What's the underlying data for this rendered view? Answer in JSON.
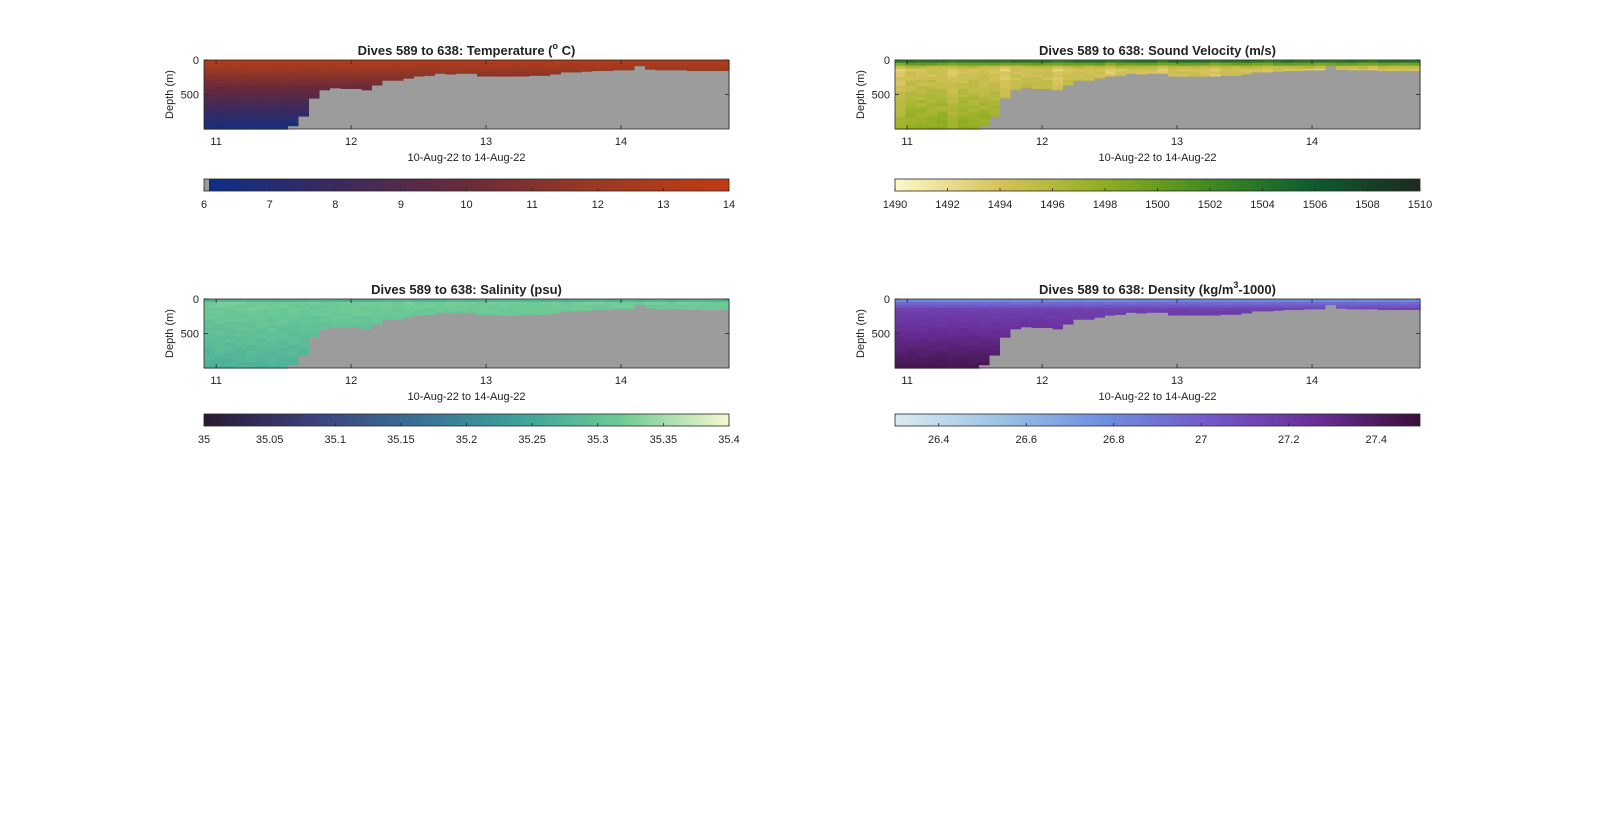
{
  "figure": {
    "background": "#ffffff"
  },
  "chart_data": [
    {
      "type": "heatmap",
      "title": "Dives 589 to 638: Temperature (° C)",
      "title_parts": [
        "Dives 589 to 638: Temperature (",
        "o",
        " C)"
      ],
      "xlabel": "10-Aug-22 to 14-Aug-22",
      "ylabel": "Depth (m)",
      "x_ticks": [
        "11",
        "12",
        "13",
        "14"
      ],
      "y_ticks": [
        "0",
        "500"
      ],
      "xlim": [
        10.91,
        14.8
      ],
      "ylim": [
        1000,
        0
      ],
      "grey_color": "#9c9c9c",
      "bottom_depth_m": [
        1000,
        1000,
        1000,
        1000,
        1000,
        1000,
        1000,
        1000,
        960,
        820,
        560,
        440,
        410,
        420,
        420,
        440,
        370,
        300,
        300,
        270,
        240,
        230,
        200,
        210,
        200,
        200,
        240,
        240,
        240,
        240,
        240,
        230,
        230,
        210,
        180,
        180,
        170,
        160,
        160,
        150,
        150,
        90,
        140,
        150,
        150,
        150,
        160,
        160,
        160,
        160
      ],
      "cmap": [
        "#0b2f8a",
        "#3a2a5e",
        "#6a2a3a",
        "#9b3a22",
        "#c23a12"
      ],
      "range": [
        6,
        14
      ],
      "colorbar_ticks": [
        "6",
        "7",
        "8",
        "9",
        "10",
        "11",
        "12",
        "13",
        "14"
      ],
      "notes": "surface ~13.5 C, decreasing to ~6.5 C at 1000 m"
    },
    {
      "type": "heatmap",
      "title": "Dives 589 to 638: Sound Velocity (m/s)",
      "title_parts": [
        "Dives 589 to 638: Sound Velocity (m/s)",
        "",
        ""
      ],
      "xlabel": "10-Aug-22 to 14-Aug-22",
      "ylabel": "Depth (m)",
      "x_ticks": [
        "11",
        "12",
        "13",
        "14"
      ],
      "y_ticks": [
        "0",
        "500"
      ],
      "xlim": [
        10.91,
        14.8
      ],
      "ylim": [
        1000,
        0
      ],
      "grey_color": "#9c9c9c",
      "bottom_depth_m": [
        1000,
        1000,
        1000,
        1000,
        1000,
        1000,
        1000,
        1000,
        960,
        820,
        560,
        440,
        410,
        420,
        420,
        440,
        370,
        300,
        300,
        270,
        240,
        230,
        200,
        210,
        200,
        200,
        240,
        240,
        240,
        240,
        240,
        230,
        230,
        210,
        180,
        180,
        170,
        160,
        160,
        150,
        150,
        90,
        140,
        150,
        150,
        150,
        160,
        160,
        160,
        160
      ],
      "cmap": [
        "#fcf8c8",
        "#d6c25a",
        "#8fae20",
        "#3f8a20",
        "#0d5b30",
        "#1e2a1e"
      ],
      "range": [
        1490,
        1510
      ],
      "colorbar_ticks": [
        "1490",
        "1492",
        "1494",
        "1496",
        "1498",
        "1500",
        "1502",
        "1504",
        "1506",
        "1508",
        "1510"
      ],
      "notes": "surface ~1503 m/s (green), ~1493-1494 at 100 m, ~1498 at depth"
    },
    {
      "type": "heatmap",
      "title": "Dives 589 to 638: Salinity (psu)",
      "title_parts": [
        "Dives 589 to 638: Salinity (psu)",
        "",
        ""
      ],
      "xlabel": "10-Aug-22 to 14-Aug-22",
      "ylabel": "Depth (m)",
      "x_ticks": [
        "11",
        "12",
        "13",
        "14"
      ],
      "y_ticks": [
        "0",
        "500"
      ],
      "xlim": [
        10.91,
        14.8
      ],
      "ylim": [
        1000,
        0
      ],
      "grey_color": "#9c9c9c",
      "bottom_depth_m": [
        1000,
        1000,
        1000,
        1000,
        1000,
        1000,
        1000,
        1000,
        960,
        820,
        560,
        440,
        410,
        420,
        420,
        440,
        370,
        300,
        300,
        270,
        240,
        230,
        200,
        210,
        200,
        200,
        240,
        240,
        240,
        240,
        240,
        230,
        230,
        210,
        180,
        180,
        170,
        160,
        160,
        150,
        150,
        90,
        140,
        150,
        150,
        150,
        160,
        160,
        160,
        160
      ],
      "cmap": [
        "#2a1a32",
        "#3c3f7a",
        "#3a6f96",
        "#3da29b",
        "#70cc95",
        "#f7f7d0"
      ],
      "range": [
        35,
        35.4
      ],
      "colorbar_ticks": [
        "35",
        "35.05",
        "35.1",
        "35.15",
        "35.2",
        "35.25",
        "35.3",
        "35.35",
        "35.4"
      ],
      "notes": "surface ~35.2, ~35.32 below, decreasing to ~35.26 at depth"
    },
    {
      "type": "heatmap",
      "title": "Dives 589 to 638: Density (kg/m³-1000)",
      "title_parts": [
        "Dives 589 to 638: Density (kg/m",
        "3",
        "-1000)"
      ],
      "xlabel": "10-Aug-22 to 14-Aug-22",
      "ylabel": "Depth (m)",
      "x_ticks": [
        "11",
        "12",
        "13",
        "14"
      ],
      "y_ticks": [
        "0",
        "500"
      ],
      "xlim": [
        10.91,
        14.8
      ],
      "ylim": [
        1000,
        0
      ],
      "grey_color": "#9c9c9c",
      "bottom_depth_m": [
        1000,
        1000,
        1000,
        1000,
        1000,
        1000,
        1000,
        1000,
        960,
        820,
        560,
        440,
        410,
        420,
        420,
        440,
        370,
        300,
        300,
        270,
        240,
        230,
        200,
        210,
        200,
        200,
        240,
        240,
        240,
        240,
        240,
        230,
        230,
        210,
        180,
        180,
        170,
        160,
        160,
        150,
        150,
        90,
        140,
        150,
        150,
        150,
        160,
        160,
        160,
        160
      ],
      "cmap": [
        "#dbeaf0",
        "#9cc2e4",
        "#6e8ee0",
        "#7458c8",
        "#6a2e98",
        "#3a0e3a"
      ],
      "range": [
        26.3,
        27.5
      ],
      "colorbar_ticks": [
        "26.4",
        "26.6",
        "26.8",
        "27",
        "27.2",
        "27.4"
      ],
      "notes": "surface ~26.6, ~27.1 near 100 m, increasing to ~27.45 at depth"
    }
  ]
}
